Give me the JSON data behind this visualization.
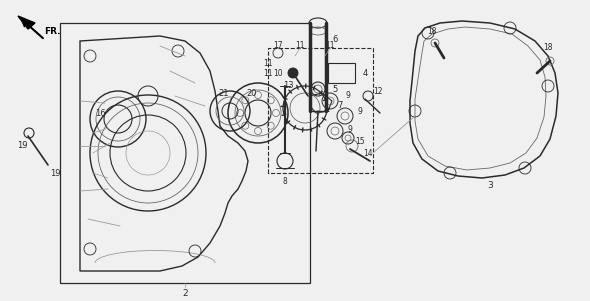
{
  "bg_color": "#f0f0f0",
  "line_color": "#2a2a2a",
  "gray": "#666666",
  "lgray": "#999999",
  "fig_w": 5.9,
  "fig_h": 3.01,
  "dpi": 100
}
